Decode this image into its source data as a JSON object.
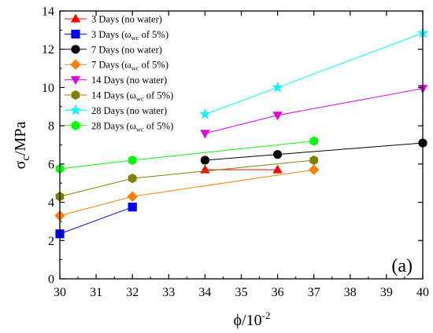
{
  "chart_data": {
    "type": "line",
    "title": "",
    "xlabel": "ϕ/10⁻²",
    "ylabel": "σc/MPa",
    "xlim": [
      30,
      40
    ],
    "ylim": [
      0,
      14
    ],
    "xticks": [
      30,
      31,
      32,
      33,
      34,
      35,
      36,
      37,
      38,
      39,
      40
    ],
    "yticks": [
      0,
      2,
      4,
      6,
      8,
      10,
      12,
      14
    ],
    "grid": false,
    "legend_position": "top-left",
    "panel_label": "(a)",
    "series": [
      {
        "name": "3 Days (no water)",
        "marker": "triangle-up",
        "color": "#ff0000",
        "x": [
          34,
          36
        ],
        "y": [
          5.7,
          5.7
        ]
      },
      {
        "name": "3 Days (ωwc of 5%)",
        "marker": "square",
        "color": "#0000ff",
        "x": [
          30,
          32
        ],
        "y": [
          2.35,
          3.75
        ]
      },
      {
        "name": "7 Days (no water)",
        "marker": "circle",
        "color": "#000000",
        "x": [
          34,
          36,
          40
        ],
        "y": [
          6.2,
          6.5,
          7.1
        ]
      },
      {
        "name": "7 Days (ωwc of 5%)",
        "marker": "diamond",
        "color": "#ff8000",
        "x": [
          30,
          32,
          37
        ],
        "y": [
          3.3,
          4.3,
          5.7
        ]
      },
      {
        "name": "14 Days (no water)",
        "marker": "triangle-down",
        "color": "#e000e0",
        "x": [
          34,
          36,
          40
        ],
        "y": [
          7.6,
          8.55,
          9.95
        ]
      },
      {
        "name": "14 Days (ωwc of 5%)",
        "marker": "hexagon",
        "color": "#808000",
        "x": [
          30,
          32,
          37
        ],
        "y": [
          4.3,
          5.25,
          6.2
        ]
      },
      {
        "name": "28 Days (no water)",
        "marker": "star",
        "color": "#00ffff",
        "x": [
          34,
          36,
          40
        ],
        "y": [
          8.6,
          10.0,
          12.85
        ]
      },
      {
        "name": "28 Days (ωwc of 5%)",
        "marker": "hexagon",
        "color": "#00ff00",
        "x": [
          30,
          32,
          37
        ],
        "y": [
          5.75,
          6.2,
          7.2
        ]
      }
    ]
  }
}
